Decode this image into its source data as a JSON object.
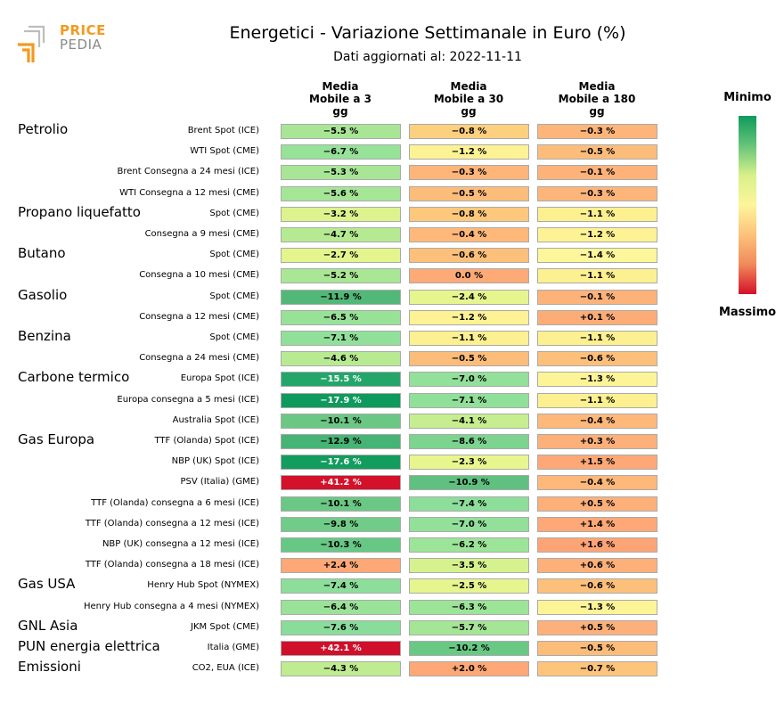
{
  "logo": {
    "line1": "PRICE",
    "line2": "PEDIA",
    "color_orange": "#f39a1e",
    "color_grey": "#8a8a8a"
  },
  "chart_data": {
    "type": "table",
    "title": "Energetici - Variazione Settimanale in Euro (%)",
    "subtitle": "Dati aggiornati al: 2022-11-11",
    "columns": [
      "Media\nMobile a 3\ngg",
      "Media\nMobile a 30\ngg",
      "Media\nMobile a 180\ngg"
    ],
    "legend": {
      "min_label": "Minimo",
      "max_label": "Massimo"
    },
    "groups": [
      {
        "name": "Petrolio",
        "rows": [
          {
            "label": "Brent Spot (ICE)",
            "values": [
              "−5.5 %",
              "−0.8 %",
              "−0.3 %"
            ],
            "colors": [
              "#a8e696",
              "#fdd080",
              "#fdb57a"
            ]
          },
          {
            "label": "WTI Spot (CME)",
            "values": [
              "−6.7 %",
              "−1.2 %",
              "−0.5 %"
            ],
            "colors": [
              "#96e298",
              "#fdf294",
              "#fdbd7a"
            ]
          },
          {
            "label": "Brent Consegna a 24 mesi (ICE)",
            "values": [
              "−5.3 %",
              "−0.3 %",
              "−0.1 %"
            ],
            "colors": [
              "#a8e696",
              "#fdb57a",
              "#fdb27a"
            ]
          },
          {
            "label": "WTI Consegna a 12 mesi (CME)",
            "values": [
              "−5.6 %",
              "−0.5 %",
              "−0.3 %"
            ],
            "colors": [
              "#a4e596",
              "#fdbd7a",
              "#fdb57a"
            ]
          }
        ]
      },
      {
        "name": "Propano liquefatto",
        "rows": [
          {
            "label": "Spot (CME)",
            "values": [
              "−3.2 %",
              "−0.8 %",
              "−1.1 %"
            ],
            "colors": [
              "#dcf38e",
              "#fdc87c",
              "#fdf090"
            ]
          },
          {
            "label": "Consegna a 9 mesi (CME)",
            "values": [
              "−4.7 %",
              "−0.4 %",
              "−1.2 %"
            ],
            "colors": [
              "#b6ea92",
              "#fdb87a",
              "#fdf294"
            ]
          }
        ]
      },
      {
        "name": "Butano",
        "rows": [
          {
            "label": "Spot (CME)",
            "values": [
              "−2.7 %",
              "−0.6 %",
              "−1.4 %"
            ],
            "colors": [
              "#e4f58e",
              "#fdc07a",
              "#fdf69a"
            ]
          },
          {
            "label": "Consegna a 10 mesi (CME)",
            "values": [
              "−5.2 %",
              "0.0 %",
              "−1.1 %"
            ],
            "colors": [
              "#aae794",
              "#fdaa76",
              "#fdf090"
            ]
          }
        ]
      },
      {
        "name": "Gasolio",
        "rows": [
          {
            "label": "Spot (CME)",
            "values": [
              "−11.9 %",
              "−2.4 %",
              "−0.1 %"
            ],
            "colors": [
              "#52b878",
              "#e6f58e",
              "#fdb27a"
            ]
          },
          {
            "label": "Consegna a 12 mesi (CME)",
            "values": [
              "−6.5 %",
              "−1.2 %",
              "+0.1 %"
            ],
            "colors": [
              "#98e298",
              "#fdf294",
              "#fdac78"
            ]
          }
        ]
      },
      {
        "name": "Benzina",
        "rows": [
          {
            "label": "Spot (CME)",
            "values": [
              "−7.1 %",
              "−1.1 %",
              "−1.1 %"
            ],
            "colors": [
              "#90e09a",
              "#fdf090",
              "#fdf090"
            ]
          },
          {
            "label": "Consegna a 24 mesi (CME)",
            "values": [
              "−4.6 %",
              "−0.5 %",
              "−0.6 %"
            ],
            "colors": [
              "#b8ea92",
              "#fdbd7a",
              "#fdc07a"
            ]
          }
        ]
      },
      {
        "name": "Carbone termico",
        "rows": [
          {
            "label": "Europa Spot (ICE)",
            "values": [
              "−15.5 %",
              "−7.0 %",
              "−1.3 %"
            ],
            "colors": [
              "#24a66a",
              "#92e09a",
              "#fdf498"
            ]
          },
          {
            "label": "Europa consegna a 5 mesi (ICE)",
            "values": [
              "−17.9 %",
              "−7.1 %",
              "−1.1 %"
            ],
            "colors": [
              "#0e9a5c",
              "#90e09a",
              "#fdf090"
            ]
          },
          {
            "label": "Australia Spot (ICE)",
            "values": [
              "−10.1 %",
              "−4.1 %",
              "−0.4 %"
            ],
            "colors": [
              "#6ac884",
              "#c6ee90",
              "#fdb87a"
            ]
          }
        ]
      },
      {
        "name": "Gas Europa",
        "rows": [
          {
            "label": "TTF (Olanda) Spot (ICE)",
            "values": [
              "−12.9 %",
              "−8.6 %",
              "+0.3 %"
            ],
            "colors": [
              "#46b474",
              "#7cd48e",
              "#fdb07a"
            ]
          },
          {
            "label": "NBP (UK) Spot (ICE)",
            "values": [
              "−17.6 %",
              "−2.3 %",
              "+1.5 %"
            ],
            "colors": [
              "#129c5e",
              "#e8f68e",
              "#fda876"
            ]
          },
          {
            "label": "PSV (Italia) (GME)",
            "values": [
              "+41.2 %",
              "−10.9 %",
              "−0.4 %"
            ],
            "colors": [
              "#d4102a",
              "#60c080",
              "#fdb87a"
            ]
          },
          {
            "label": "TTF (Olanda) consegna a 6 mesi (ICE)",
            "values": [
              "−10.1 %",
              "−7.4 %",
              "+0.5 %"
            ],
            "colors": [
              "#6ac884",
              "#8cde9a",
              "#fdb07a"
            ]
          },
          {
            "label": "TTF (Olanda) consegna a 12 mesi (ICE)",
            "values": [
              "−9.8 %",
              "−7.0 %",
              "+1.4 %"
            ],
            "colors": [
              "#70cc88",
              "#92e09a",
              "#fda876"
            ]
          },
          {
            "label": "NBP (UK) consegna a 12 mesi (ICE)",
            "values": [
              "−10.3 %",
              "−6.2 %",
              "+1.6 %"
            ],
            "colors": [
              "#66c884",
              "#9ce498",
              "#fda476"
            ]
          },
          {
            "label": "TTF (Olanda) consegna a 18 mesi (ICE)",
            "values": [
              "+2.4 %",
              "−3.5 %",
              "+0.6 %"
            ],
            "colors": [
              "#fda876",
              "#d6f28e",
              "#fdb07a"
            ]
          }
        ]
      },
      {
        "name": "Gas USA",
        "rows": [
          {
            "label": "Henry Hub Spot (NYMEX)",
            "values": [
              "−7.4 %",
              "−2.5 %",
              "−0.6 %"
            ],
            "colors": [
              "#8cde9a",
              "#e6f58e",
              "#fdc07a"
            ]
          },
          {
            "label": "Henry Hub consegna a 4 mesi (NYMEX)",
            "values": [
              "−6.4 %",
              "−6.3 %",
              "−1.3 %"
            ],
            "colors": [
              "#9ae298",
              "#9ce498",
              "#fdf498"
            ]
          }
        ]
      },
      {
        "name": "GNL Asia",
        "rows": [
          {
            "label": "JKM Spot (CME)",
            "values": [
              "−7.6 %",
              "−5.7 %",
              "+0.5 %"
            ],
            "colors": [
              "#8adc9a",
              "#a4e596",
              "#fdb07a"
            ]
          }
        ]
      },
      {
        "name": "PUN energia elettrica",
        "rows": [
          {
            "label": "Italia (GME)",
            "values": [
              "+42.1 %",
              "−10.2 %",
              "−0.5 %"
            ],
            "colors": [
              "#d0102a",
              "#68c884",
              "#fdbd7a"
            ]
          }
        ]
      },
      {
        "name": "Emissioni",
        "rows": [
          {
            "label": "CO2, EUA (ICE)",
            "values": [
              "−4.3 %",
              "+2.0 %",
              "−0.7 %"
            ],
            "colors": [
              "#bfec90",
              "#fda876",
              "#fdc47c"
            ]
          }
        ]
      }
    ]
  }
}
